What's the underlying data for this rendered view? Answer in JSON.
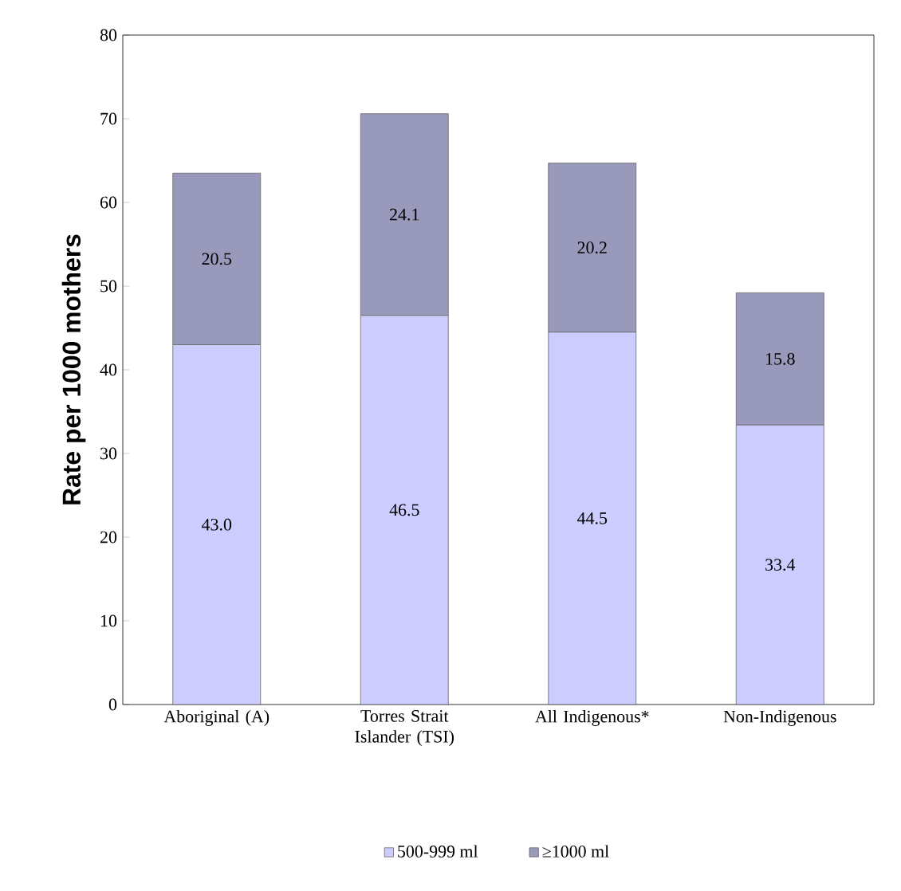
{
  "chart_data": {
    "type": "bar",
    "stacked": true,
    "ylabel": "Rate per 1000 mothers",
    "categories": [
      "Aboriginal (A)",
      "Torres Strait Islander (TSI)",
      "All Indigenous*",
      "Non-Indigenous"
    ],
    "series": [
      {
        "name": "500-999 ml",
        "color": "#ccccff",
        "values": [
          43.0,
          46.5,
          44.5,
          33.4
        ],
        "value_labels": [
          "43.0",
          "46.5",
          "44.5",
          "33.4"
        ]
      },
      {
        "name": "≥1000 ml",
        "color": "#9999bb",
        "values": [
          20.5,
          24.1,
          20.2,
          15.8
        ],
        "value_labels": [
          "20.5",
          "24.1",
          "20.2",
          "15.8"
        ]
      }
    ],
    "ylim": [
      0,
      80
    ],
    "yticks": [
      0,
      10,
      20,
      30,
      40,
      50,
      60,
      70,
      80
    ],
    "legend": "bottom",
    "grid": false
  }
}
